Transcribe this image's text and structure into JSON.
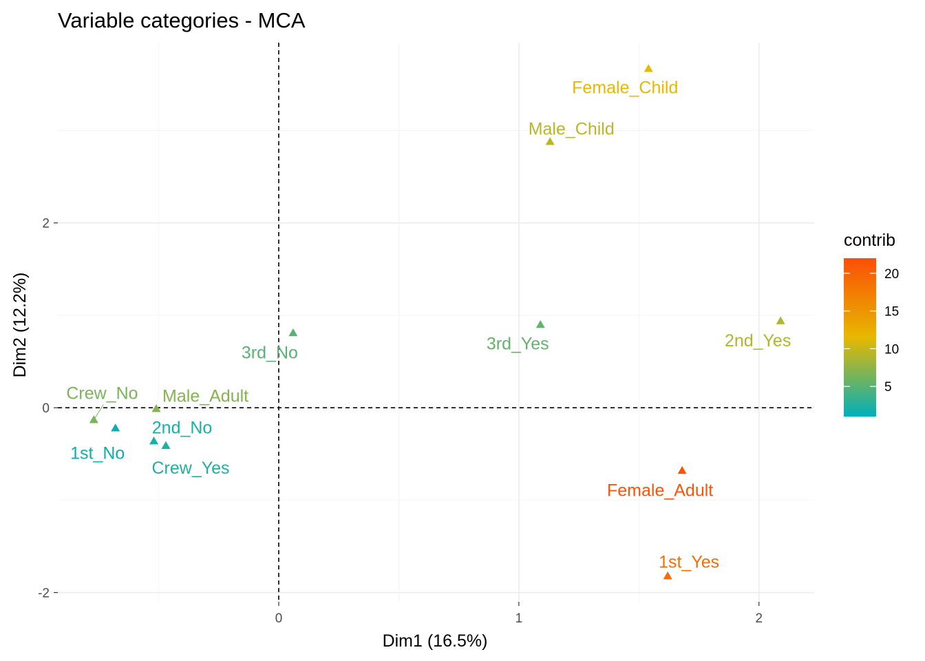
{
  "chart_data": {
    "type": "scatter",
    "title": "Variable categories - MCA",
    "xlabel": "Dim1 (16.5%)",
    "ylabel": "Dim2 (12.2%)",
    "xlim": [
      -0.92,
      2.23
    ],
    "ylim": [
      -2.1,
      3.95
    ],
    "xticks": [
      0,
      1,
      2
    ],
    "yticks": [
      -2,
      0,
      2
    ],
    "xtick_labels": [
      "0",
      "1",
      "2"
    ],
    "ytick_labels": [
      "-2",
      "0",
      "2"
    ],
    "grid": true,
    "reference_lines": {
      "x": 0,
      "y": 0,
      "style": "dashed"
    },
    "points": [
      {
        "label": "Female_Child",
        "x": 1.54,
        "y": 3.67,
        "contrib": 11.5
      },
      {
        "label": "Male_Child",
        "x": 1.13,
        "y": 2.88,
        "contrib": 9.5
      },
      {
        "label": "2nd_Yes",
        "x": 2.09,
        "y": 0.94,
        "contrib": 9.0
      },
      {
        "label": "3rd_Yes",
        "x": 1.09,
        "y": 0.9,
        "contrib": 5.5
      },
      {
        "label": "3rd_No",
        "x": 0.06,
        "y": 0.81,
        "contrib": 5.0
      },
      {
        "label": "Crew_No",
        "x": -0.77,
        "y": -0.13,
        "contrib": 6.5
      },
      {
        "label": "Male_Adult",
        "x": -0.51,
        "y": -0.01,
        "contrib": 7.0
      },
      {
        "label": "1st_No",
        "x": -0.68,
        "y": -0.22,
        "contrib": 1.5
      },
      {
        "label": "2nd_No",
        "x": -0.52,
        "y": -0.36,
        "contrib": 2.0
      },
      {
        "label": "Crew_Yes",
        "x": -0.47,
        "y": -0.41,
        "contrib": 2.5
      },
      {
        "label": "Female_Adult",
        "x": 1.68,
        "y": -0.68,
        "contrib": 21.5
      },
      {
        "label": "1st_Yes",
        "x": 1.62,
        "y": -1.82,
        "contrib": 19.0
      }
    ],
    "legend": {
      "title": "contrib",
      "placement": "right",
      "range": [
        1,
        22
      ],
      "ticks": [
        5,
        10,
        15,
        20
      ],
      "tick_labels": [
        "5",
        "10",
        "15",
        "20"
      ],
      "colors": [
        "#00AFBB",
        "#E7B800",
        "#FC4E07"
      ]
    }
  }
}
